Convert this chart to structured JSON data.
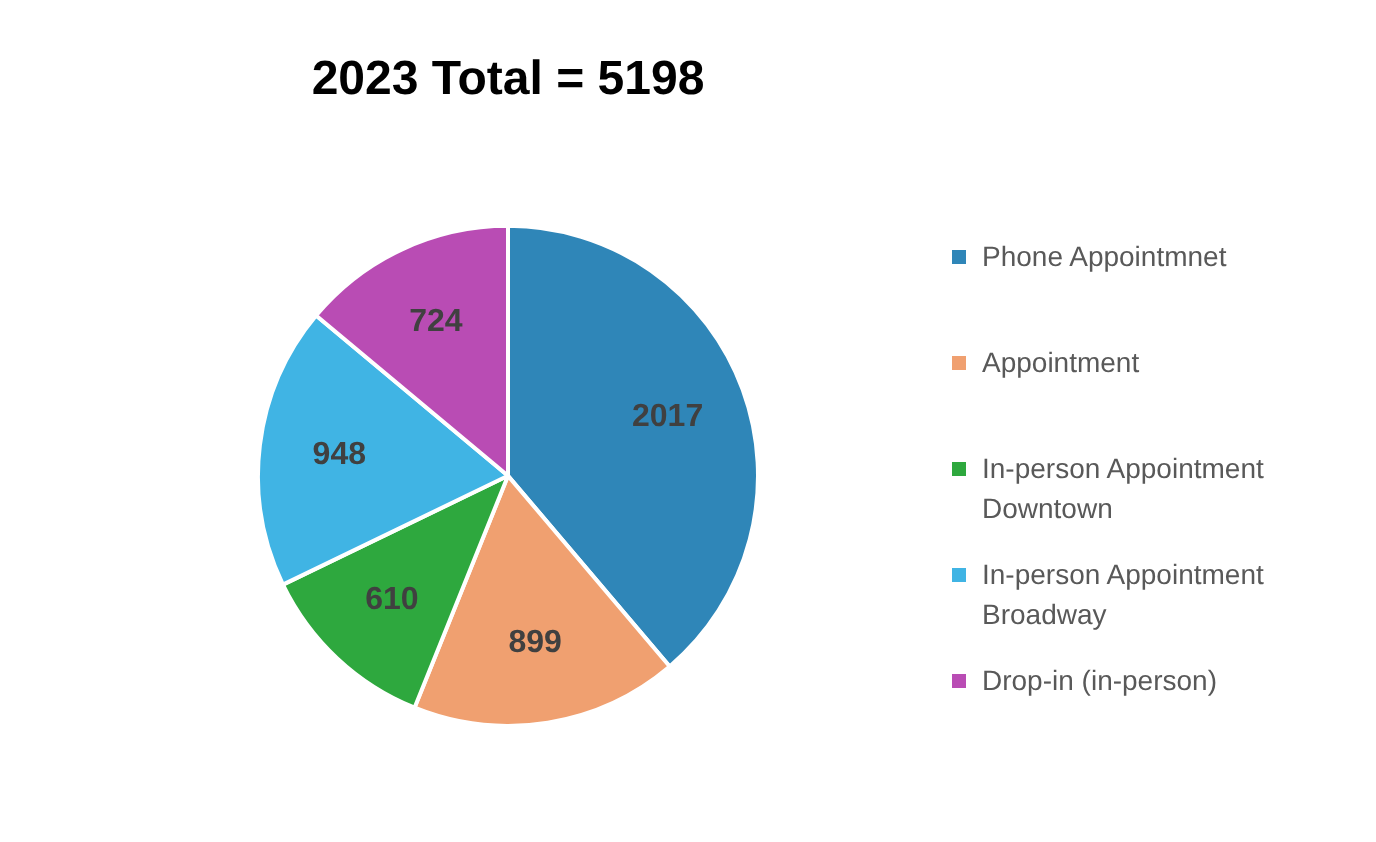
{
  "chart_data": {
    "type": "pie",
    "title": "2023 Total = 5198",
    "categories": [
      "Phone Appointmnet",
      "Appointment",
      "In-person Appointment Downtown",
      "In-person Appointment Broadway",
      "Drop-in (in-person)"
    ],
    "values": [
      2017,
      899,
      610,
      948,
      724
    ],
    "colors": [
      "#2f86b8",
      "#f0a070",
      "#2ea83e",
      "#40b4e4",
      "#b94cb4"
    ],
    "data_labels": true,
    "legend": "right"
  }
}
